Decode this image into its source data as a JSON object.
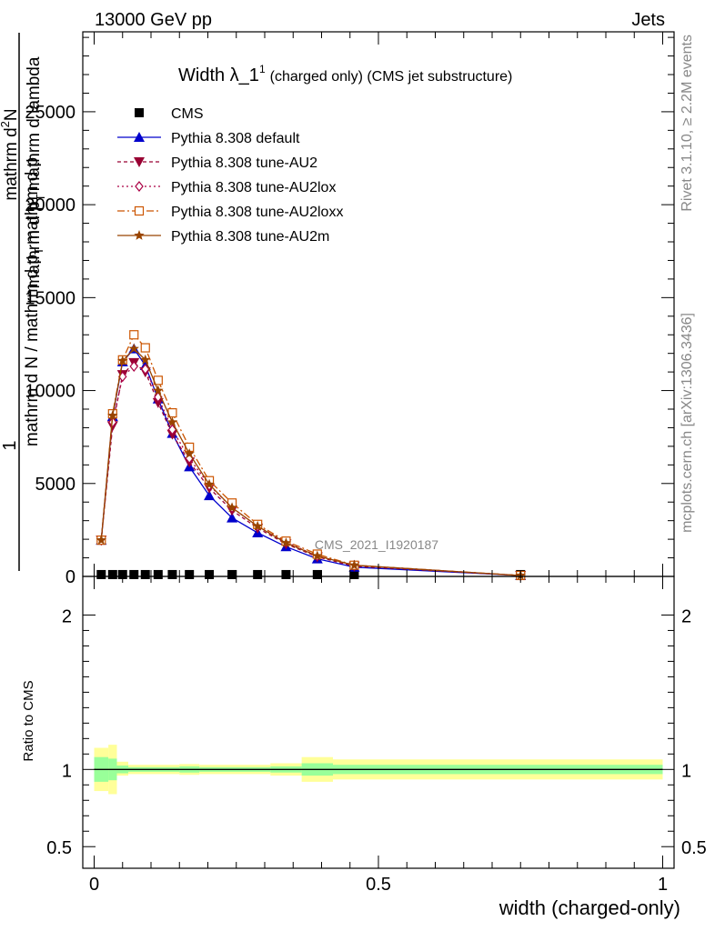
{
  "header": {
    "left": "13000 GeV pp",
    "right": "Jets"
  },
  "side_labels": {
    "rivet": "Rivet 3.1.10, ≥ 2.2M events",
    "mcplots": "mcplots.cern.ch [arXiv:1306.3436]"
  },
  "watermark": "CMS_2021_I1920187",
  "colors": {
    "cms": "#000000",
    "default": "#0000cc",
    "au2": "#990033",
    "au2lox": "#aa0044",
    "au2loxx": "#cc5500",
    "au2m": "#994400",
    "band_outer": "#ffff99",
    "band_inner": "#99ff99"
  },
  "chart_data": [
    {
      "type": "line",
      "title_main": "Width λ_1",
      "title_sup": "1",
      "title_rest": "(charged only) (CMS jet substructure)",
      "ylabel": "1/ mathrm dN / mathrm d p_T mathrm d lambda / mathrm d^2N / mathrm d p_T mathrm d lambda",
      "ylabel_parts": {
        "numer": "1",
        "denom": "mathrm d N / mathrm d p",
        "denom_sub": "T",
        "denom_rest": "mathrm d p",
        "top_line1": "mathrm d",
        "top_sup": "2",
        "top_rest": "N",
        "mid_line": "mathrm d p",
        "mid_sub": "T",
        "mid_rest": "mathrm d lambda"
      },
      "xlim": [
        -0.02,
        1.02
      ],
      "ylim": [
        0,
        29300
      ],
      "yticks": [
        0,
        5000,
        10000,
        15000,
        20000,
        25000
      ],
      "ytick_labels": [
        "0",
        "5000",
        "10000",
        "15000",
        "20000",
        "25000"
      ],
      "x": [
        0.0125,
        0.0325,
        0.05,
        0.07,
        0.09,
        0.1125,
        0.1375,
        0.1675,
        0.2025,
        0.2425,
        0.2875,
        0.3375,
        0.3925,
        0.4575,
        0.75
      ],
      "series": [
        {
          "name": "CMS",
          "key": "cms",
          "marker": "square",
          "dash": "",
          "values": [
            100,
            100,
            100,
            100,
            100,
            100,
            100,
            100,
            100,
            100,
            100,
            100,
            100,
            100,
            100
          ]
        },
        {
          "name": "Pythia 8.308 default",
          "key": "default",
          "marker": "triangle",
          "dash": "",
          "values": [
            1950,
            8600,
            11550,
            12250,
            11350,
            9550,
            7700,
            5900,
            4350,
            3150,
            2350,
            1600,
            950,
            500,
            50
          ]
        },
        {
          "name": "Pythia 8.308 tune-AU2",
          "key": "au2",
          "marker": "triangle-down",
          "dash": "4,3",
          "values": [
            1950,
            8100,
            10850,
            11500,
            11000,
            9350,
            7650,
            6150,
            4750,
            3550,
            2600,
            1750,
            1050,
            550,
            50
          ]
        },
        {
          "name": "Pythia 8.308 tune-AU2lox",
          "key": "au2lox",
          "marker": "diamond",
          "dash": "2,3",
          "values": [
            1950,
            8300,
            10750,
            11300,
            11150,
            9650,
            7900,
            6350,
            4900,
            3700,
            2700,
            1850,
            1100,
            600,
            50
          ]
        },
        {
          "name": "Pythia 8.308 tune-AU2loxx",
          "key": "au2loxx",
          "marker": "square-open",
          "dash": "8,3,2,3",
          "values": [
            1950,
            8750,
            11650,
            13000,
            12300,
            10550,
            8800,
            6950,
            5150,
            3950,
            2800,
            1900,
            1200,
            600,
            50
          ]
        },
        {
          "name": "Pythia 8.308 tune-AU2m",
          "key": "au2m",
          "marker": "star",
          "dash": "",
          "values": [
            1950,
            8650,
            11600,
            12250,
            11650,
            10000,
            8300,
            6600,
            4950,
            3700,
            2700,
            1800,
            1100,
            600,
            50
          ]
        }
      ]
    },
    {
      "type": "area",
      "ylabel": "Ratio to CMS",
      "xlabel": "width (charged-only)",
      "xlim": [
        -0.02,
        1.02
      ],
      "ylim": [
        0.36,
        2.25
      ],
      "xticks": [
        0,
        0.5,
        1
      ],
      "xtick_labels": [
        "0",
        "0.5",
        "1"
      ],
      "yticks": [
        0.5,
        1,
        2
      ],
      "ytick_labels": [
        "0.5",
        "1",
        "2"
      ],
      "reference": 1,
      "bins": [
        {
          "x0": 0.0,
          "x1": 0.025,
          "outer": [
            0.86,
            1.14
          ],
          "inner": [
            0.92,
            1.08
          ]
        },
        {
          "x0": 0.025,
          "x1": 0.04,
          "outer": [
            0.84,
            1.16
          ],
          "inner": [
            0.93,
            1.07
          ]
        },
        {
          "x0": 0.04,
          "x1": 0.06,
          "outer": [
            0.96,
            1.05
          ],
          "inner": [
            0.975,
            1.025
          ]
        },
        {
          "x0": 0.06,
          "x1": 0.15,
          "outer": [
            0.97,
            1.03
          ],
          "inner": [
            0.985,
            1.015
          ]
        },
        {
          "x0": 0.15,
          "x1": 0.185,
          "outer": [
            0.965,
            1.035
          ],
          "inner": [
            0.98,
            1.02
          ]
        },
        {
          "x0": 0.185,
          "x1": 0.31,
          "outer": [
            0.97,
            1.03
          ],
          "inner": [
            0.985,
            1.015
          ]
        },
        {
          "x0": 0.31,
          "x1": 0.365,
          "outer": [
            0.96,
            1.04
          ],
          "inner": [
            0.98,
            1.02
          ]
        },
        {
          "x0": 0.365,
          "x1": 0.42,
          "outer": [
            0.92,
            1.08
          ],
          "inner": [
            0.96,
            1.04
          ]
        },
        {
          "x0": 0.42,
          "x1": 1.0,
          "outer": [
            0.935,
            1.065
          ],
          "inner": [
            0.97,
            1.03
          ]
        }
      ]
    }
  ]
}
